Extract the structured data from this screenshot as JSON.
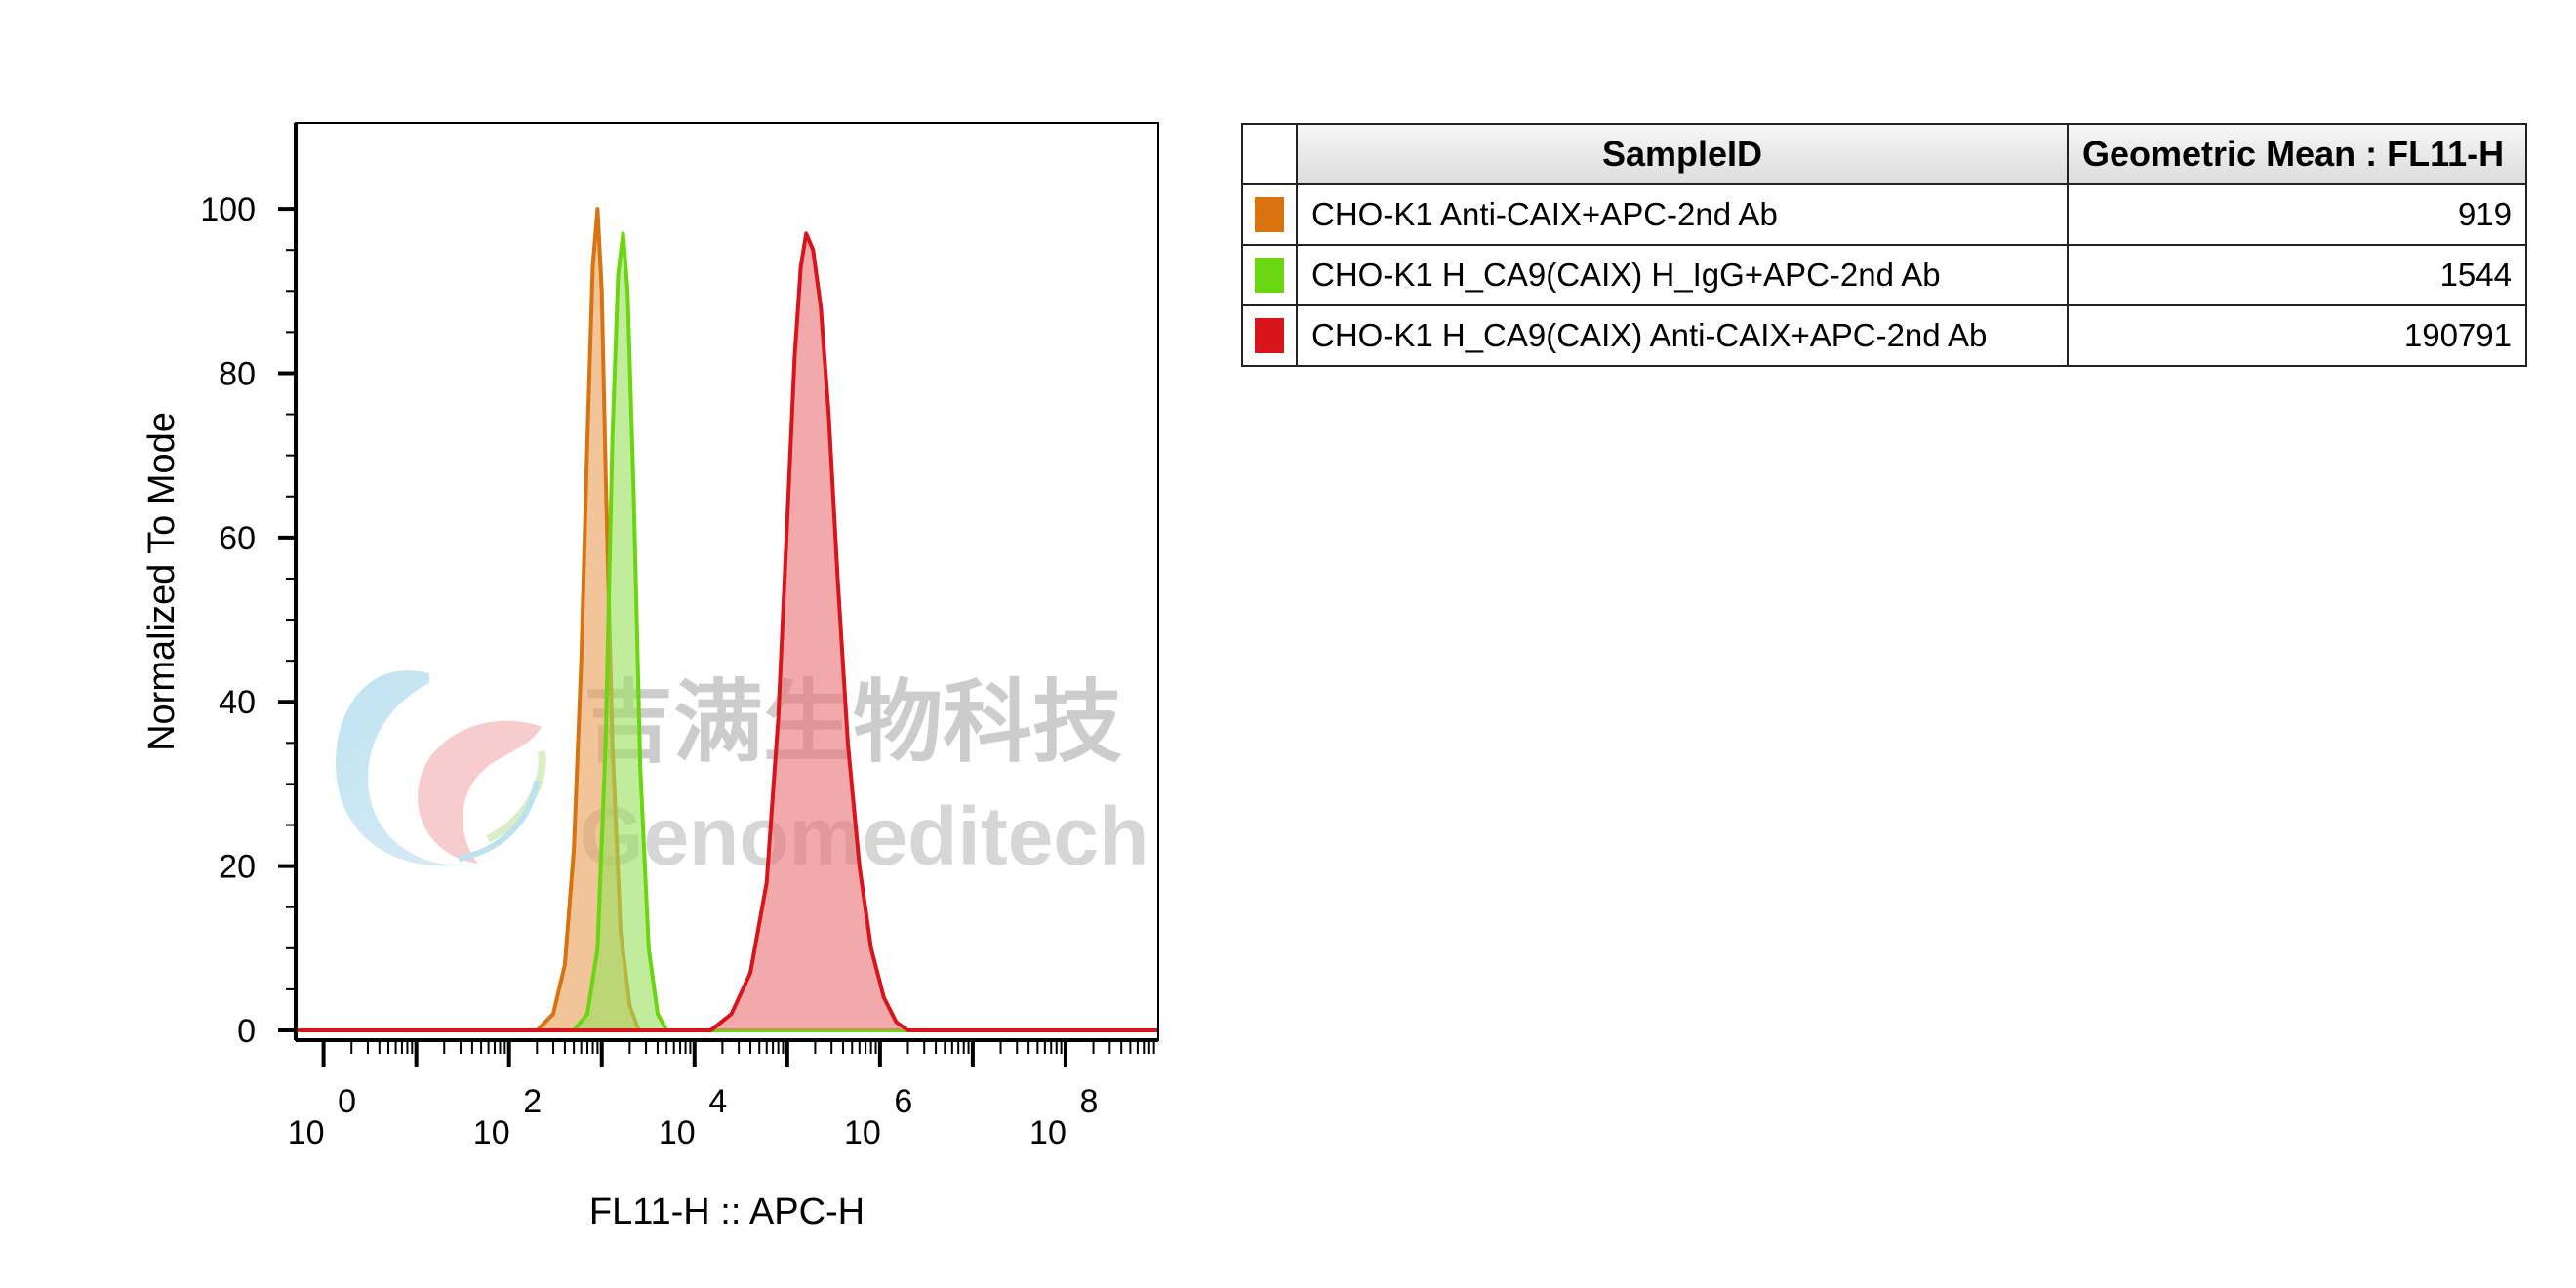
{
  "chart_data": {
    "type": "area",
    "xlabel": "FL11-H :: APC-H",
    "ylabel": "Normalized To Mode",
    "xscale": "log",
    "xlim": [
      0.5,
      1000000000
    ],
    "ylim": [
      0,
      105
    ],
    "y_ticks": [
      0,
      20,
      40,
      60,
      80,
      100
    ],
    "x_ticks": [
      {
        "base": "10",
        "exp": "0",
        "value": 1
      },
      {
        "base": "10",
        "exp": "2",
        "value": 100
      },
      {
        "base": "10",
        "exp": "4",
        "value": 10000
      },
      {
        "base": "10",
        "exp": "6",
        "value": 1000000
      },
      {
        "base": "10",
        "exp": "8",
        "value": 100000000
      }
    ],
    "grid": false,
    "legend_position": "right-table",
    "legend_headers": {
      "sample": "SampleID",
      "value": "Geometric Mean : FL11-H"
    },
    "series": [
      {
        "name": "CHO-K1 Anti-CAIX+APC-2nd Ab",
        "geometric_mean": "919",
        "stroke": "#d97310",
        "fill": "#e8a05a",
        "x": [
          200,
          300,
          400,
          500,
          600,
          700,
          800,
          900,
          1000,
          1100,
          1300,
          1600,
          2000,
          2500
        ],
        "y": [
          0,
          2,
          8,
          22,
          45,
          72,
          93,
          100,
          90,
          68,
          35,
          12,
          3,
          0
        ]
      },
      {
        "name": "CHO-K1 H_CA9(CAIX) H_IgG+APC-2nd Ab",
        "geometric_mean": "1544",
        "stroke": "#6ad60f",
        "fill": "#9be05f",
        "x": [
          500,
          700,
          900,
          1100,
          1300,
          1500,
          1700,
          1900,
          2200,
          2600,
          3200,
          4000,
          5000
        ],
        "y": [
          0,
          2,
          10,
          35,
          72,
          92,
          97,
          90,
          66,
          32,
          10,
          2,
          0
        ]
      },
      {
        "name": "CHO-K1 H_CA9(CAIX) Anti-CAIX+APC-2nd Ab",
        "geometric_mean": "190791",
        "stroke": "#d8151b",
        "fill": "#e87478",
        "x": [
          15000,
          25000,
          40000,
          60000,
          80000,
          100000,
          120000,
          140000,
          160000,
          190000,
          230000,
          280000,
          350000,
          450000,
          600000,
          800000,
          1100000,
          1500000,
          2000000
        ],
        "y": [
          0,
          2,
          7,
          18,
          38,
          62,
          82,
          93,
          97,
          95,
          88,
          75,
          55,
          35,
          20,
          10,
          4,
          1,
          0
        ]
      }
    ]
  },
  "watermark": {
    "cn": "吉满生物科技",
    "en": "Genomeditech",
    "logo": "genomeditech-logo"
  }
}
